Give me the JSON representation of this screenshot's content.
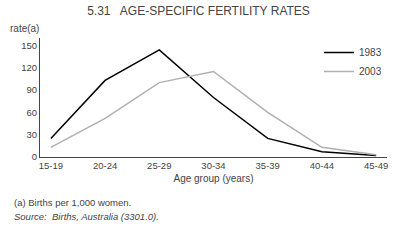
{
  "chart_data": {
    "type": "line",
    "title": "5.31   AGE-SPECIFIC FERTILITY RATES",
    "xlabel": "Age group (years)",
    "ylabel": "rate(a)",
    "categories": [
      "15-19",
      "20-24",
      "25-29",
      "30-34",
      "35-39",
      "40-44",
      "45-49"
    ],
    "series": [
      {
        "name": "1983",
        "color": "#000000",
        "values": [
          25,
          103,
          144,
          80,
          25,
          7,
          2
        ]
      },
      {
        "name": "2003",
        "color": "#b0b0b0",
        "values": [
          13,
          52,
          100,
          115,
          60,
          13,
          3
        ]
      }
    ],
    "ylim": [
      0,
      160
    ],
    "yticks": [
      0,
      30,
      60,
      90,
      120,
      150
    ],
    "grid": false,
    "legend": "upper right",
    "annotations": [
      "(a) Births per 1,000 women.",
      "Source:  Births, Australia (3301.0)."
    ]
  }
}
